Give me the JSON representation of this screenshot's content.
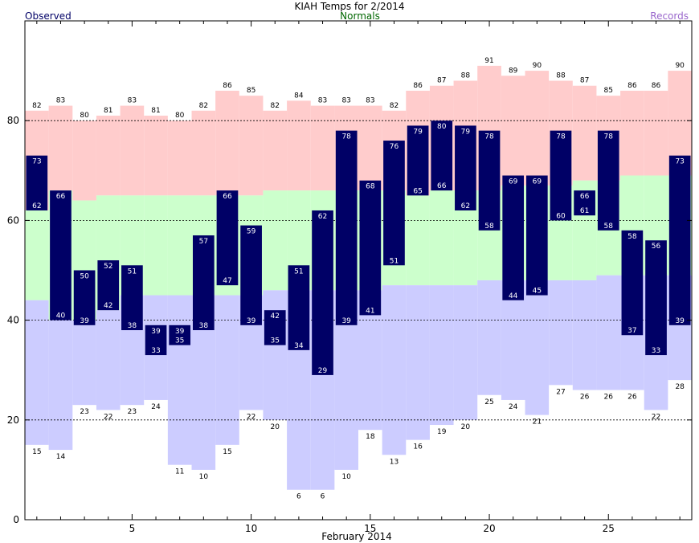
{
  "chart_data": {
    "type": "bar",
    "title": "KIAH Temps for 2/2014",
    "xlabel": "February 2014",
    "ylabel": "",
    "legend": {
      "observed": "Observed",
      "normals": "Normals",
      "records": "Records"
    },
    "xlim": [
      0.5,
      28.5
    ],
    "ylim": [
      0,
      100
    ],
    "yticks": [
      0,
      20,
      40,
      60,
      80
    ],
    "xticks": [
      5,
      10,
      15,
      20,
      25
    ],
    "grid_dashed_at": [
      20,
      40,
      60,
      80
    ],
    "days": [
      1,
      2,
      3,
      4,
      5,
      6,
      7,
      8,
      9,
      10,
      11,
      12,
      13,
      14,
      15,
      16,
      17,
      18,
      19,
      20,
      21,
      22,
      23,
      24,
      25,
      26,
      27,
      28
    ],
    "record_high": [
      82,
      83,
      80,
      81,
      83,
      81,
      80,
      82,
      86,
      85,
      82,
      84,
      83,
      83,
      83,
      82,
      86,
      87,
      88,
      91,
      89,
      90,
      88,
      87,
      85,
      86,
      86,
      90
    ],
    "record_low": [
      15,
      14,
      23,
      22,
      23,
      24,
      11,
      10,
      15,
      22,
      20,
      6,
      6,
      10,
      18,
      13,
      16,
      19,
      20,
      25,
      24,
      21,
      27,
      26,
      26,
      26,
      22,
      28
    ],
    "normal_high": [
      62,
      66,
      64,
      65,
      65,
      65,
      65,
      65,
      65,
      65,
      66,
      66,
      66,
      66,
      66,
      66,
      65,
      66,
      66,
      66,
      67,
      67,
      67,
      68,
      68,
      69,
      69,
      69
    ],
    "normal_low": [
      44,
      40,
      40,
      42,
      45,
      45,
      45,
      45,
      45,
      45,
      46,
      46,
      46,
      46,
      46,
      47,
      47,
      47,
      47,
      48,
      48,
      48,
      48,
      48,
      49,
      49,
      49,
      49
    ],
    "series": [
      {
        "name": "Observed",
        "role": "high",
        "values": [
          73,
          66,
          50,
          52,
          51,
          39,
          39,
          57,
          66,
          59,
          42,
          51,
          62,
          78,
          68,
          76,
          79,
          80,
          79,
          78,
          69,
          69,
          78,
          66,
          78,
          58,
          56,
          73
        ]
      },
      {
        "name": "Observed",
        "role": "low",
        "values": [
          62,
          40,
          39,
          42,
          38,
          33,
          35,
          38,
          47,
          39,
          35,
          34,
          29,
          39,
          41,
          51,
          65,
          66,
          62,
          58,
          44,
          45,
          60,
          61,
          58,
          37,
          33,
          39
        ]
      }
    ],
    "colors": {
      "records": "#ffcccc",
      "normals": "#ccffcc",
      "below_normal": "#ccccff",
      "observed": "#000066",
      "observed_text": "#ffffff"
    }
  }
}
